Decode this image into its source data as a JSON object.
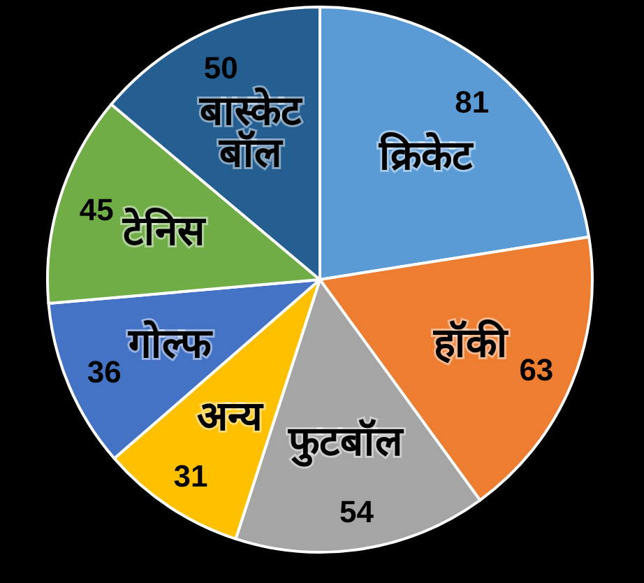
{
  "chart_data": {
    "type": "pie",
    "categories": [
      "क्रिकेट",
      "हॉकी",
      "फुटबॉल",
      "अन्य",
      "गोल्फ",
      "टेनिस",
      "बास्केट बॉल"
    ],
    "values": [
      81,
      63,
      54,
      31,
      36,
      45,
      50
    ],
    "colors": [
      "#5b9bd5",
      "#ed7d31",
      "#a5a5a5",
      "#ffc000",
      "#4472c4",
      "#70ad47",
      "#255e91"
    ],
    "data_labels": true
  }
}
